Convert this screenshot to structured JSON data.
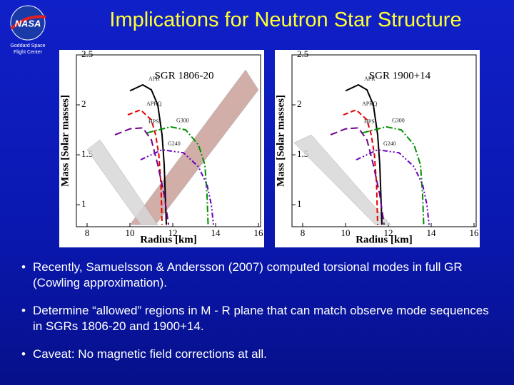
{
  "header": {
    "title": "Implications for Neutron Star Structure",
    "org": "Goddard Space Flight Center",
    "logo": "NASA"
  },
  "chart_data": [
    {
      "type": "line",
      "title": "SGR 1806-20",
      "xlabel": "Radius [km]",
      "ylabel": "Mass [Solar masses]",
      "xlim": [
        7.5,
        16.1
      ],
      "ylim": [
        0.78,
        2.5
      ],
      "xticks": [
        8,
        10,
        12,
        14,
        16
      ],
      "yticks": [
        1,
        1.5,
        2,
        2.5
      ],
      "regions": [
        {
          "color": "#c9a09a",
          "x": [
            10.0,
            11.2,
            16.0,
            15.4
          ],
          "values": [
            0.8,
            0.8,
            2.15,
            2.35
          ]
        },
        {
          "color": "#d8d8d8",
          "x": [
            8.0,
            8.6,
            11.3,
            10.5
          ],
          "values": [
            1.55,
            1.65,
            0.8,
            0.8
          ]
        }
      ],
      "series": [
        {
          "name": "APR",
          "color": "#000000",
          "dash": "none",
          "x": [
            10.0,
            10.6,
            11.0,
            11.3,
            11.5,
            11.6,
            11.65,
            11.7
          ],
          "values": [
            2.14,
            2.2,
            2.15,
            2.0,
            1.7,
            1.4,
            1.1,
            0.8
          ]
        },
        {
          "name": "APRQ",
          "color": "#e00000",
          "dash": "7 4",
          "x": [
            9.9,
            10.5,
            11.0,
            11.2,
            11.35,
            11.45,
            11.5
          ],
          "values": [
            1.9,
            1.95,
            1.85,
            1.7,
            1.5,
            1.2,
            0.8
          ]
        },
        {
          "name": "HPS",
          "color": "#700090",
          "dash": "10 5",
          "x": [
            9.3,
            10.0,
            10.6,
            11.0,
            11.3,
            11.6,
            11.8
          ],
          "values": [
            1.7,
            1.76,
            1.77,
            1.65,
            1.4,
            1.1,
            0.8
          ]
        },
        {
          "name": "G300",
          "color": "#009000",
          "dash": "9 3 2 3",
          "x": [
            10.8,
            11.9,
            12.6,
            13.2,
            13.5,
            13.6,
            13.65
          ],
          "values": [
            1.72,
            1.78,
            1.75,
            1.6,
            1.4,
            1.1,
            0.8
          ]
        },
        {
          "name": "G240",
          "color": "#6a00c0",
          "dash": "7 3 2 3 2 3",
          "x": [
            10.5,
            11.5,
            12.5,
            13.2,
            13.6,
            13.8,
            13.9
          ],
          "values": [
            1.45,
            1.55,
            1.52,
            1.38,
            1.2,
            1.0,
            0.8
          ]
        }
      ]
    },
    {
      "type": "line",
      "title": "SGR 1900+14",
      "xlabel": "Radius [km]",
      "ylabel": "Mass [Solar masses]",
      "xlim": [
        7.5,
        16.1
      ],
      "ylim": [
        0.78,
        2.5
      ],
      "xticks": [
        8,
        10,
        12,
        14,
        16
      ],
      "yticks": [
        1,
        1.5,
        2,
        2.5
      ],
      "regions": [
        {
          "color": "#d8d8d8",
          "x": [
            7.6,
            8.4,
            12.1,
            11.4
          ],
          "values": [
            1.62,
            1.7,
            0.8,
            0.8
          ]
        }
      ],
      "series": [
        {
          "name": "APR",
          "color": "#000000",
          "dash": "none",
          "x": [
            10.0,
            10.6,
            11.0,
            11.3,
            11.5,
            11.6,
            11.65,
            11.7
          ],
          "values": [
            2.14,
            2.2,
            2.15,
            2.0,
            1.7,
            1.4,
            1.1,
            0.8
          ]
        },
        {
          "name": "APRQ",
          "color": "#e00000",
          "dash": "7 4",
          "x": [
            9.9,
            10.5,
            11.0,
            11.2,
            11.35,
            11.45,
            11.5
          ],
          "values": [
            1.9,
            1.95,
            1.85,
            1.7,
            1.5,
            1.2,
            0.8
          ]
        },
        {
          "name": "HPS",
          "color": "#700090",
          "dash": "10 5",
          "x": [
            9.3,
            10.0,
            10.6,
            11.0,
            11.3,
            11.6,
            11.8
          ],
          "values": [
            1.7,
            1.76,
            1.77,
            1.65,
            1.4,
            1.1,
            0.8
          ]
        },
        {
          "name": "G300",
          "color": "#009000",
          "dash": "9 3 2 3",
          "x": [
            10.8,
            11.9,
            12.6,
            13.2,
            13.5,
            13.6,
            13.65
          ],
          "values": [
            1.72,
            1.78,
            1.75,
            1.6,
            1.4,
            1.1,
            0.8
          ]
        },
        {
          "name": "G240",
          "color": "#6a00c0",
          "dash": "7 3 2 3 2 3",
          "x": [
            10.5,
            11.5,
            12.5,
            13.2,
            13.6,
            13.8,
            13.9
          ],
          "values": [
            1.45,
            1.55,
            1.52,
            1.38,
            1.2,
            1.0,
            0.8
          ]
        }
      ]
    }
  ],
  "bullets": [
    "Recently, Samuelsson & Andersson (2007) computed torsional modes in full GR (Cowling approximation).",
    "Determine “allowed” regions in M - R plane that can match observe mode sequences in SGRs 1806-20 and 1900+14.",
    "Caveat:  No magnetic field corrections at all."
  ]
}
